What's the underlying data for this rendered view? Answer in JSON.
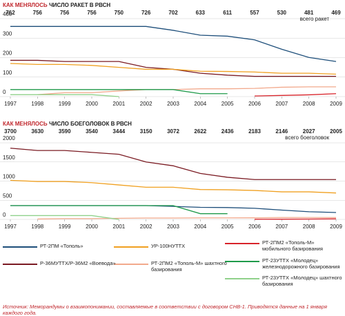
{
  "chart_data": [
    {
      "type": "line",
      "title_highlight": "КАК МЕНЯЛОСЬ",
      "title": "ЧИСЛО РАКЕТ В РВСН",
      "totals": [
        762,
        756,
        756,
        756,
        750,
        726,
        702,
        633,
        611,
        557,
        530,
        481,
        469
      ],
      "totals_label": "всего ракет",
      "x": [
        1997,
        1998,
        1999,
        2000,
        2001,
        2002,
        2003,
        2004,
        2005,
        2006,
        2007,
        2008,
        2009
      ],
      "xlim": [
        1997,
        2009
      ],
      "ylim": [
        0,
        400
      ],
      "yticks": [
        0,
        100,
        200,
        300,
        400
      ],
      "grid": true,
      "series": [
        {
          "name": "РТ-2ПМ «Тополь»",
          "color": "#1d4e7a",
          "values": [
            360,
            360,
            360,
            360,
            360,
            360,
            340,
            315,
            310,
            291,
            243,
            201,
            180
          ]
        },
        {
          "name": "Р-36МУТТХ/Р-36М2 «Воевода»",
          "color": "#7a1a22",
          "values": [
            186,
            186,
            180,
            180,
            180,
            150,
            140,
            120,
            110,
            104,
            104,
            104,
            104
          ]
        },
        {
          "name": "УР-100НУТТХ",
          "color": "#f0a020",
          "values": [
            170,
            165,
            165,
            160,
            150,
            140,
            140,
            130,
            129,
            126,
            120,
            120,
            115
          ]
        },
        {
          "name": "РТ-2ПМ2 «Тополь-М» шахтного базирования",
          "color": "#f2a98c",
          "values": [
            null,
            10,
            20,
            20,
            29,
            36,
            36,
            40,
            40,
            42,
            48,
            50,
            50
          ]
        },
        {
          "name": "РТ-2ПМ2 «Тополь-М» мобильного базирования",
          "color": "#d8232a",
          "values": [
            null,
            null,
            null,
            null,
            null,
            null,
            null,
            null,
            null,
            3,
            6,
            9,
            15
          ]
        },
        {
          "name": "РТ-23УТТХ «Молодец» железнодорожного базирования",
          "color": "#1e9a4a",
          "values": [
            36,
            36,
            36,
            36,
            36,
            36,
            36,
            15,
            15,
            null,
            null,
            null,
            null
          ]
        },
        {
          "name": "РТ-23УТТХ «Молодец» шахтного базирования",
          "color": "#8fd18a",
          "values": [
            10,
            10,
            10,
            10,
            0,
            null,
            null,
            null,
            null,
            null,
            null,
            null,
            null
          ]
        }
      ]
    },
    {
      "type": "line",
      "title_highlight": "КАК МЕНЯЛОСЬ",
      "title": "ЧИСЛО БОЕГОЛОВОК В РВСН",
      "totals": [
        3700,
        3630,
        3590,
        3540,
        3444,
        3150,
        3072,
        2622,
        2436,
        2183,
        2146,
        2027,
        2005
      ],
      "totals_label": "всего боеголовок",
      "x": [
        1997,
        1998,
        1999,
        2000,
        2001,
        2002,
        2003,
        2004,
        2005,
        2006,
        2007,
        2008,
        2009
      ],
      "xlim": [
        1997,
        2009
      ],
      "ylim": [
        0,
        2000
      ],
      "yticks": [
        0,
        500,
        1000,
        1500,
        2000
      ],
      "grid": true,
      "series": [
        {
          "name": "РТ-2ПМ «Тополь»",
          "color": "#1d4e7a",
          "values": [
            360,
            360,
            360,
            360,
            360,
            360,
            340,
            315,
            310,
            291,
            243,
            201,
            180
          ]
        },
        {
          "name": "Р-36МУТТХ/Р-36М2 «Воевода»",
          "color": "#7a1a22",
          "values": [
            1860,
            1800,
            1800,
            1750,
            1700,
            1500,
            1400,
            1200,
            1100,
            1040,
            1040,
            1040,
            1040
          ]
        },
        {
          "name": "УР-100НУТТХ",
          "color": "#f0a020",
          "values": [
            1020,
            990,
            990,
            960,
            900,
            840,
            840,
            780,
            774,
            756,
            720,
            720,
            690
          ]
        },
        {
          "name": "РТ-2ПМ2 «Тополь-М» шахтного базирования",
          "color": "#f2a98c",
          "values": [
            null,
            10,
            20,
            20,
            29,
            36,
            36,
            40,
            40,
            42,
            48,
            50,
            50
          ]
        },
        {
          "name": "РТ-2ПМ2 «Тополь-М» мобильного базирования",
          "color": "#d8232a",
          "values": [
            null,
            null,
            null,
            null,
            null,
            null,
            null,
            null,
            null,
            3,
            6,
            9,
            15
          ]
        },
        {
          "name": "РТ-23УТТХ «Молодец» железнодорожного базирования",
          "color": "#1e9a4a",
          "values": [
            360,
            360,
            360,
            360,
            360,
            360,
            360,
            150,
            150,
            null,
            null,
            null,
            null
          ]
        },
        {
          "name": "РТ-23УТТХ «Молодец» шахтного базирования",
          "color": "#8fd18a",
          "values": [
            100,
            100,
            100,
            100,
            0,
            null,
            null,
            null,
            null,
            null,
            null,
            null,
            null
          ]
        }
      ]
    }
  ],
  "source": "Источник: Меморандумы о взаимопонимании, составляемые в соответствии с договором СНВ-1. Приводятся данные на 1 января каждого года."
}
